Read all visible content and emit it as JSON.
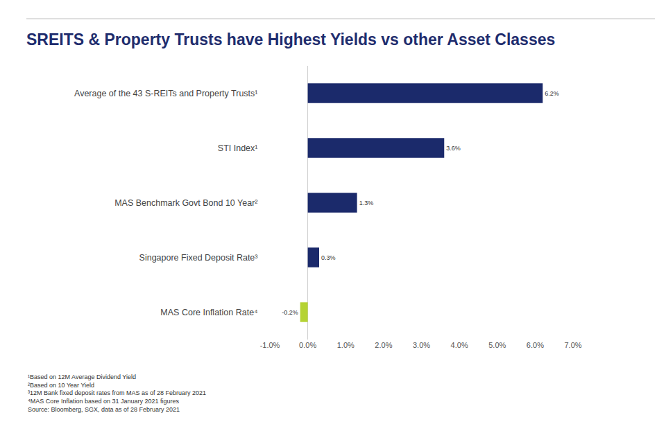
{
  "chart_data": {
    "type": "bar",
    "orientation": "horizontal",
    "title": "SREITS & Property Trusts have Highest Yields vs other Asset Classes",
    "categories": [
      "Average of the 43 S-REITs and Property Trusts¹",
      "STI Index¹",
      "MAS Benchmark Govt Bond 10 Year²",
      "Singapore Fixed Deposit Rate³",
      "MAS Core Inflation Rate⁴"
    ],
    "values": [
      6.2,
      3.6,
      1.3,
      0.3,
      -0.2
    ],
    "value_labels": [
      "6.2%",
      "3.6%",
      "1.3%",
      "0.3%",
      "-0.2%"
    ],
    "colors": [
      "#1b2a6b",
      "#1b2a6b",
      "#1b2a6b",
      "#1b2a6b",
      "#b5d334"
    ],
    "data_labels": true,
    "grid": false,
    "xlim": [
      -1,
      7
    ],
    "xticks": [
      {
        "value": -1,
        "label": "-1.0%"
      },
      {
        "value": 0,
        "label": "0.0%"
      },
      {
        "value": 1,
        "label": "1.0%"
      },
      {
        "value": 2,
        "label": "2.0%"
      },
      {
        "value": 3,
        "label": "3.0%"
      },
      {
        "value": 4,
        "label": "4.0%"
      },
      {
        "value": 5,
        "label": "5.0%"
      },
      {
        "value": 6,
        "label": "6.0%"
      },
      {
        "value": 7,
        "label": "7.0%"
      }
    ],
    "annotations": [
      "¹Based on 12M Average Dividend Yield",
      "²Based on 10 Year Yield",
      "³12M Bank fixed deposit rates from MAS as of 28 February 2021",
      "⁴MAS Core Inflation based on 31 January 2021 figures",
      "Source: Bloomberg, SGX, data as of 28 February 2021"
    ]
  }
}
